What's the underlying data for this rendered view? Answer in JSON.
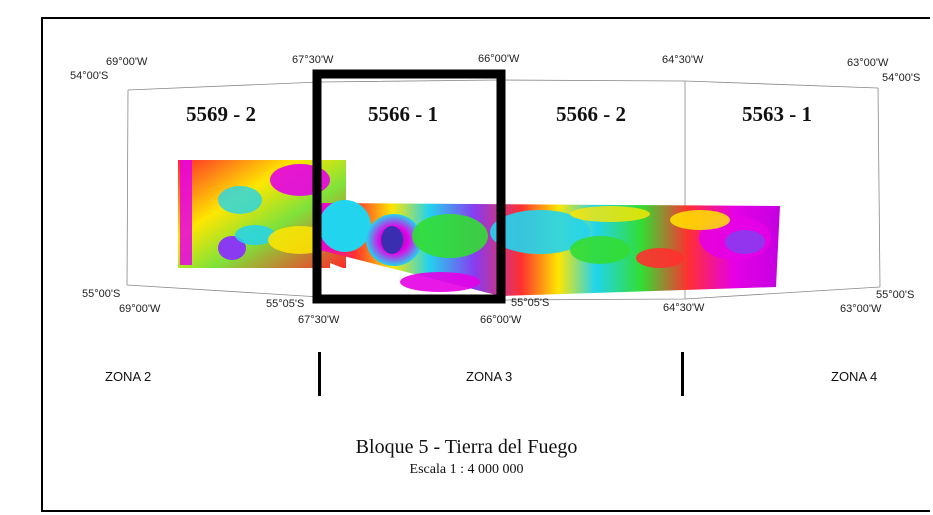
{
  "map": {
    "title": "Bloque 5 - Tierra del Fuego",
    "scale": "Escala 1 : 4 000 000",
    "sheets": [
      {
        "id": "s1",
        "label": "5569 - 2"
      },
      {
        "id": "s2",
        "label": "5566 - 1"
      },
      {
        "id": "s3",
        "label": "5566 - 2"
      },
      {
        "id": "s4",
        "label": "5563 - 1"
      }
    ],
    "top_coords": {
      "lon_69": "69°00'W",
      "lat_left": "54°00'S",
      "lon_6730": "67°30'W",
      "lon_66": "66°00'W",
      "lon_6430": "64°30'W",
      "lon_63": "63°00'W",
      "lat_right": "54°00'S"
    },
    "bottom_coords": {
      "lat_left": "55°00'S",
      "lon_69": "69°00'W",
      "lat_box_left": "55°05'S",
      "lon_6730": "67°30'W",
      "lon_66": "66°00'W",
      "lat_box_right": "55°05'S",
      "lon_6430": "64°30'W",
      "lat_right": "55°00'S",
      "lon_63": "63°00'W"
    },
    "zones": [
      "ZONA 2",
      "ZONA 3",
      "ZONA 4"
    ],
    "colors": {
      "magenta": "#e600e6",
      "red": "#ff1a1a",
      "yellow": "#ffee00",
      "green": "#33dd33",
      "cyan": "#22d4ee",
      "blue": "#3a7df0",
      "violet": "#8a3af0"
    }
  }
}
